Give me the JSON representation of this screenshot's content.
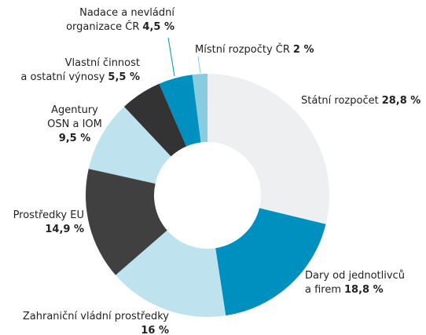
{
  "chart_data": {
    "type": "donut",
    "categories": [
      "Státní rozpočet",
      "Dary od jednotlivců\na firem",
      "Zahraniční vládní prostředky\n",
      "Prostředky EU\n",
      "Agentury\nOSN a IOM\n",
      "Vlastní činnost\na ostatní výnosy",
      "Nadace a nevládní\norganizace ČR",
      "Místní rozpočty ČR"
    ],
    "values": [
      28.8,
      18.8,
      16,
      14.9,
      9.5,
      5.5,
      4.5,
      2
    ],
    "value_labels": [
      "28,8 %",
      "18,8 %",
      "16 %",
      "14,9 %",
      "9,5 %",
      "5,5 %",
      "4,5 %",
      "2 %"
    ],
    "colors": [
      "#eeeff0",
      "#0090bf",
      "#bfe3ee",
      "#404040",
      "#bfe3ee",
      "#333333",
      "#0090bf",
      "#88cce0"
    ]
  }
}
